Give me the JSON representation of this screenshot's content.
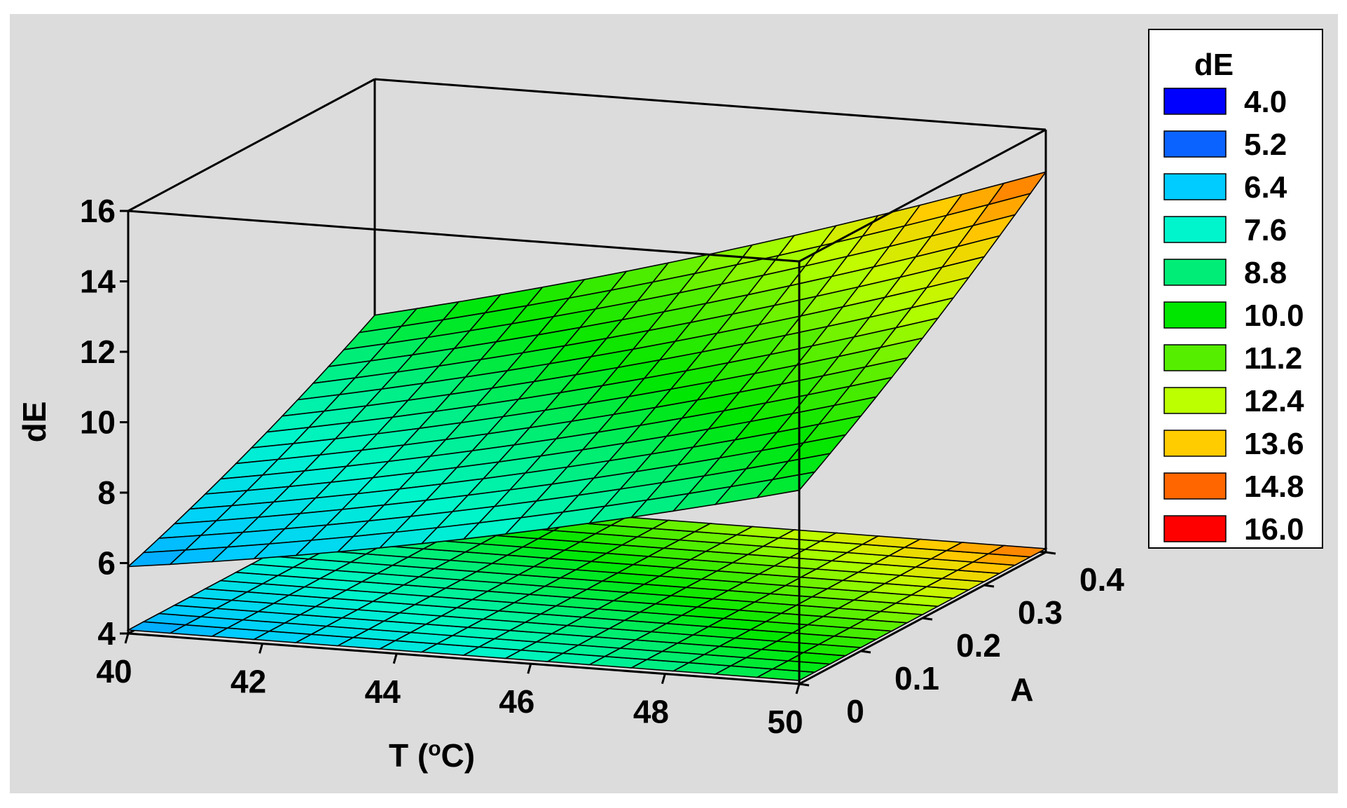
{
  "chart_data": {
    "type": "surface3d",
    "title": "",
    "xlabel": "T (oC)",
    "xlabel_main": "T (",
    "xlabel_sup": "o",
    "xlabel_end": "C)",
    "ylabel": "A",
    "zlabel": "dE",
    "xlim": [
      40,
      50
    ],
    "ylim": [
      0,
      0.4
    ],
    "zlim": [
      4,
      16
    ],
    "x_ticks": [
      "40",
      "42",
      "44",
      "46",
      "48",
      "50"
    ],
    "y_ticks": [
      "0",
      "0.1",
      "0.2",
      "0.3",
      "0.4"
    ],
    "z_ticks": [
      "4",
      "6",
      "8",
      "10",
      "12",
      "14",
      "16"
    ],
    "surface": {
      "x": [
        40,
        50
      ],
      "y": [
        0,
        0.4
      ],
      "corner_values": {
        "x40_y0": 5.9,
        "x40_y0.4": 8.5,
        "x50_y0": 9.5,
        "x50_y0.4": 14.0
      },
      "minimum": 5.6
    },
    "contour_projection": "floor",
    "legend": {
      "title": "dE",
      "placement": "right",
      "levels": [
        "4.0",
        "5.2",
        "6.4",
        "7.6",
        "8.8",
        "10.0",
        "11.2",
        "12.4",
        "13.6",
        "14.8",
        "16.0"
      ],
      "colors": [
        "#0000ff",
        "#0b63ff",
        "#00ccff",
        "#00f5cc",
        "#00ee77",
        "#00e600",
        "#55ee00",
        "#bbff00",
        "#ffcc00",
        "#ff6600",
        "#ff0000"
      ]
    },
    "background_color": "#dcdcdc"
  }
}
